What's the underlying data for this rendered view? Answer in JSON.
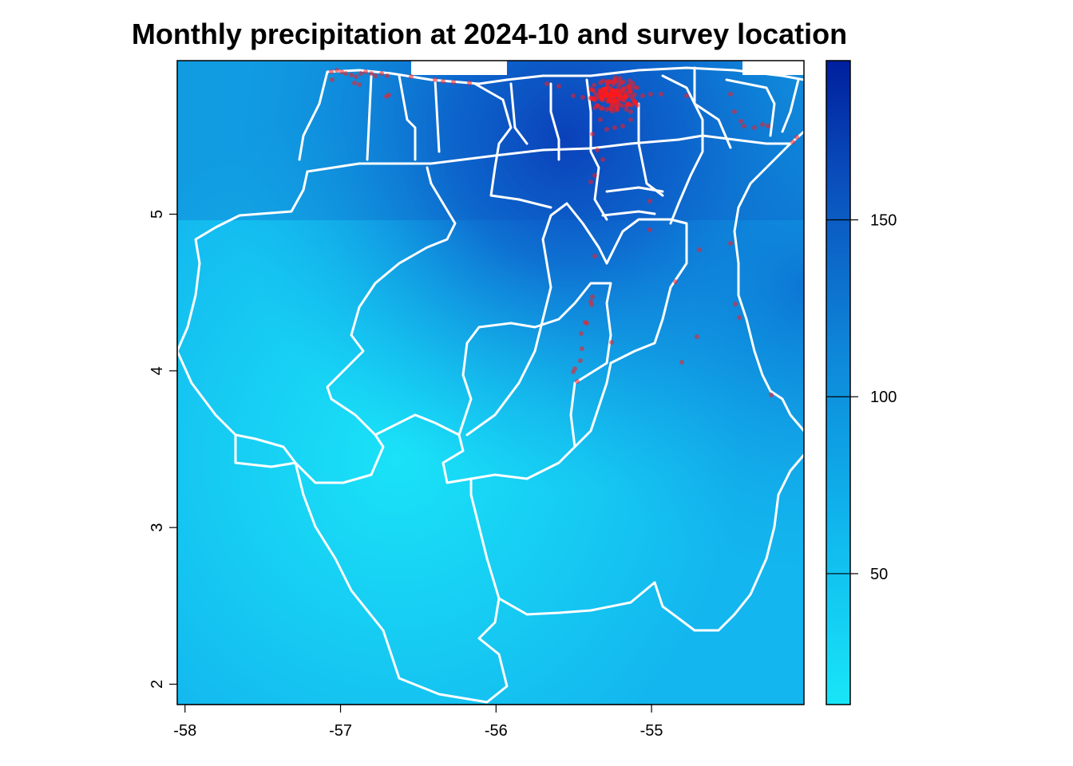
{
  "title": "Monthly precipitation at 2024-10 and survey location",
  "chart_data": {
    "type": "heatmap",
    "title": "Monthly precipitation at 2024-10 and survey location",
    "x_ticks": [
      "-58",
      "-57",
      "-56",
      "-55"
    ],
    "x_tick_values": [
      -58,
      -57,
      -56,
      -55
    ],
    "y_ticks": [
      "2",
      "3",
      "4",
      "5"
    ],
    "y_tick_values": [
      2,
      3,
      4,
      5
    ],
    "xlim": [
      -58.05,
      -54.02
    ],
    "ylim": [
      1.87,
      5.98
    ],
    "legend": {
      "position": "right",
      "ticks": [
        "50",
        "100",
        "150"
      ],
      "tick_values": [
        50,
        100,
        150
      ],
      "range": [
        13,
        195
      ],
      "colors": [
        "#18e6f8",
        "#0f98e0",
        "#0a5cc4",
        "#001f9e"
      ]
    },
    "overlay": {
      "boundaries_color": "#ffffff",
      "points_color": "#ff0000"
    }
  },
  "colors": {
    "low": "#1ae6f8",
    "mid": "#0ea4e8",
    "high": "#0633b0",
    "boundary": "#ffffff",
    "points": "#ff1a1a"
  }
}
